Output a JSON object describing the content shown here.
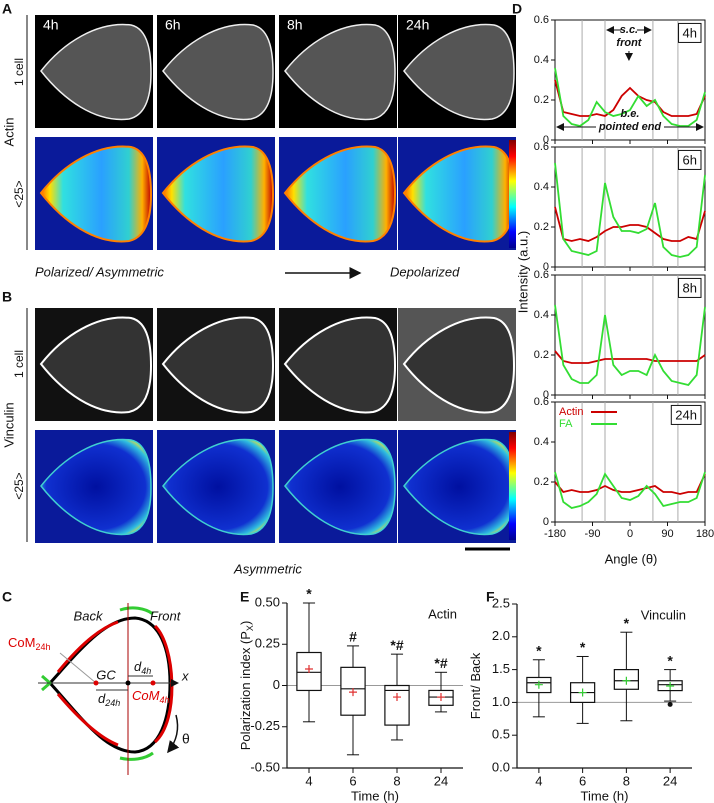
{
  "panel_labels": [
    "A",
    "B",
    "C",
    "D",
    "E",
    "F"
  ],
  "images": {
    "actin_label": "Actin",
    "vinculin_label": "Vinculin",
    "times": [
      "4h",
      "6h",
      "8h",
      "24h"
    ],
    "one_cell": "1 cell",
    "average": "<25>",
    "caption_left": "Polarized/ Asymmetric",
    "caption_right": "Depolarized",
    "caption_b": "Asymmetric"
  },
  "diagram": {
    "back": "Back",
    "front": "Front",
    "com_24h": {
      "text": "CoM",
      "sub": "24h"
    },
    "com_4h": {
      "text": "CoM",
      "sub": "4h"
    },
    "gc": "GC",
    "d_4h": {
      "text": "d",
      "sub": "4h"
    },
    "d_24h": {
      "text": "d",
      "sub": "24h"
    },
    "x": "x",
    "theta": "θ"
  },
  "panel_d": {
    "y_label": "Intensity (a.u.)",
    "x_label": "Angle (θ)"
  },
  "chart_data": [
    {
      "type": "line",
      "title": "4h",
      "xlim": [
        -180,
        180
      ],
      "xticks": [
        -180,
        -90,
        0,
        90,
        180
      ],
      "ylim": [
        0,
        0.6
      ],
      "yticks": [
        0,
        0.2,
        0.4,
        0.6
      ],
      "reference_lines": [
        -115,
        -60,
        55,
        115
      ],
      "annotations": [
        [
          "s.c.",
          "front"
        ],
        [
          "b.e.",
          "pointed end"
        ]
      ],
      "x": [
        -180,
        -160,
        -140,
        -120,
        -100,
        -80,
        -60,
        -40,
        -20,
        0,
        20,
        40,
        60,
        80,
        100,
        120,
        140,
        160,
        180
      ],
      "series": [
        {
          "name": "Actin",
          "color": "#cc0000",
          "values": [
            0.3,
            0.14,
            0.13,
            0.12,
            0.12,
            0.13,
            0.12,
            0.15,
            0.22,
            0.26,
            0.22,
            0.2,
            0.19,
            0.14,
            0.12,
            0.12,
            0.12,
            0.13,
            0.22
          ]
        },
        {
          "name": "FA",
          "color": "#33dd33",
          "values": [
            0.36,
            0.12,
            0.08,
            0.07,
            0.1,
            0.19,
            0.14,
            0.12,
            0.13,
            0.15,
            0.22,
            0.17,
            0.2,
            0.12,
            0.08,
            0.07,
            0.07,
            0.1,
            0.24
          ]
        }
      ]
    },
    {
      "type": "line",
      "title": "6h",
      "xlim": [
        -180,
        180
      ],
      "xticks": [
        -180,
        -90,
        0,
        90,
        180
      ],
      "ylim": [
        0,
        0.6
      ],
      "yticks": [
        0,
        0.2,
        0.4,
        0.6
      ],
      "reference_lines": [
        -115,
        -60,
        55,
        115
      ],
      "x": [
        -180,
        -160,
        -140,
        -120,
        -100,
        -80,
        -60,
        -40,
        -20,
        0,
        20,
        40,
        60,
        80,
        100,
        120,
        140,
        160,
        180
      ],
      "series": [
        {
          "name": "Actin",
          "color": "#cc0000",
          "values": [
            0.3,
            0.14,
            0.13,
            0.14,
            0.13,
            0.15,
            0.18,
            0.2,
            0.2,
            0.21,
            0.21,
            0.2,
            0.17,
            0.14,
            0.13,
            0.13,
            0.15,
            0.14,
            0.28
          ]
        },
        {
          "name": "FA",
          "color": "#33dd33",
          "values": [
            0.52,
            0.14,
            0.08,
            0.07,
            0.06,
            0.08,
            0.42,
            0.25,
            0.18,
            0.18,
            0.17,
            0.19,
            0.32,
            0.1,
            0.06,
            0.05,
            0.06,
            0.1,
            0.46
          ]
        }
      ]
    },
    {
      "type": "line",
      "title": "8h",
      "xlim": [
        -180,
        180
      ],
      "xticks": [
        -180,
        -90,
        0,
        90,
        180
      ],
      "ylim": [
        0,
        0.6
      ],
      "yticks": [
        0,
        0.2,
        0.4,
        0.6
      ],
      "reference_lines": [
        -115,
        -60,
        55,
        115
      ],
      "x": [
        -180,
        -160,
        -140,
        -120,
        -100,
        -80,
        -60,
        -40,
        -20,
        0,
        20,
        40,
        60,
        80,
        100,
        120,
        140,
        160,
        180
      ],
      "series": [
        {
          "name": "Actin",
          "color": "#cc0000",
          "values": [
            0.22,
            0.17,
            0.16,
            0.16,
            0.16,
            0.17,
            0.18,
            0.18,
            0.18,
            0.18,
            0.18,
            0.18,
            0.17,
            0.17,
            0.17,
            0.17,
            0.17,
            0.17,
            0.2
          ]
        },
        {
          "name": "FA",
          "color": "#33dd33",
          "values": [
            0.45,
            0.15,
            0.08,
            0.06,
            0.06,
            0.1,
            0.4,
            0.15,
            0.1,
            0.12,
            0.12,
            0.1,
            0.2,
            0.12,
            0.07,
            0.06,
            0.05,
            0.1,
            0.44
          ]
        }
      ]
    },
    {
      "type": "line",
      "title": "24h",
      "xlim": [
        -180,
        180
      ],
      "xticks": [
        -180,
        -90,
        0,
        90,
        180
      ],
      "ylim": [
        0,
        0.6
      ],
      "yticks": [
        0,
        0.2,
        0.4,
        0.6
      ],
      "reference_lines": [
        -115,
        -60,
        55,
        115
      ],
      "legend": "top-left",
      "tick_labels": true,
      "x": [
        -180,
        -160,
        -140,
        -120,
        -100,
        -80,
        -60,
        -40,
        -20,
        0,
        20,
        40,
        60,
        80,
        100,
        120,
        140,
        160,
        180
      ],
      "series": [
        {
          "name": "Actin",
          "color": "#cc0000",
          "values": [
            0.2,
            0.15,
            0.16,
            0.15,
            0.15,
            0.16,
            0.18,
            0.16,
            0.15,
            0.15,
            0.16,
            0.17,
            0.18,
            0.15,
            0.15,
            0.14,
            0.15,
            0.15,
            0.24
          ]
        },
        {
          "name": "FA",
          "color": "#33dd33",
          "values": [
            0.25,
            0.1,
            0.07,
            0.08,
            0.1,
            0.14,
            0.24,
            0.18,
            0.12,
            0.11,
            0.13,
            0.18,
            0.14,
            0.08,
            0.09,
            0.1,
            0.1,
            0.12,
            0.25
          ]
        }
      ]
    },
    {
      "type": "box",
      "title": "Actin",
      "x_label": "Time (h)",
      "y_label": {
        "text": "Polarization index (P",
        "sub": "X",
        "tail": ")"
      },
      "categories": [
        "4",
        "6",
        "8",
        "24"
      ],
      "ylim": [
        -0.5,
        0.5
      ],
      "yticks": [
        {
          "value": -0.5,
          "label": "-0.50"
        },
        {
          "value": -0.25,
          "label": "-0.25"
        },
        0,
        {
          "value": 0.25,
          "label": "0.25"
        },
        {
          "value": 0.5,
          "label": "0.50"
        }
      ],
      "reference_line": 0,
      "mean_color": "#e03030",
      "boxes": [
        {
          "whisker_low": -0.22,
          "q1": -0.03,
          "median": 0.08,
          "q3": 0.2,
          "whisker_high": 0.5,
          "mean": 0.1,
          "annotation": "*"
        },
        {
          "whisker_low": -0.42,
          "q1": -0.18,
          "median": -0.02,
          "q3": 0.11,
          "whisker_high": 0.24,
          "mean": -0.04,
          "annotation": "#"
        },
        {
          "whisker_low": -0.33,
          "q1": -0.24,
          "median": -0.03,
          "q3": 0,
          "whisker_high": 0.19,
          "mean": -0.07,
          "annotation": "*#"
        },
        {
          "whisker_low": -0.16,
          "q1": -0.12,
          "median": -0.07,
          "q3": -0.03,
          "whisker_high": 0.08,
          "mean": -0.07,
          "annotation": "*#"
        }
      ]
    },
    {
      "type": "box",
      "title": "Vinculin",
      "x_label": "Time (h)",
      "y_label": {
        "text": "Front/ Back"
      },
      "categories": [
        "4",
        "6",
        "8",
        "24"
      ],
      "ylim": [
        0,
        2.5
      ],
      "yticks": [
        {
          "value": 0,
          "label": "0.0"
        },
        0.5,
        {
          "value": 1,
          "label": "1.0"
        },
        1.5,
        {
          "value": 2,
          "label": "2.0"
        },
        2.5
      ],
      "reference_line": 1,
      "mean_color": "#33cc33",
      "boxes": [
        {
          "whisker_low": 0.78,
          "q1": 1.15,
          "median": 1.3,
          "q3": 1.38,
          "whisker_high": 1.65,
          "mean": 1.27,
          "annotation": "*"
        },
        {
          "whisker_low": 0.68,
          "q1": 1.0,
          "median": 1.15,
          "q3": 1.3,
          "whisker_high": 1.7,
          "mean": 1.15,
          "annotation": "*"
        },
        {
          "whisker_low": 0.72,
          "q1": 1.2,
          "median": 1.33,
          "q3": 1.5,
          "whisker_high": 2.07,
          "mean": 1.33,
          "annotation": "*"
        },
        {
          "whisker_low": 1.02,
          "q1": 1.18,
          "median": 1.27,
          "q3": 1.33,
          "whisker_high": 1.5,
          "mean": 1.25,
          "annotation": "*",
          "outliers": [
            0.97
          ]
        }
      ]
    }
  ]
}
